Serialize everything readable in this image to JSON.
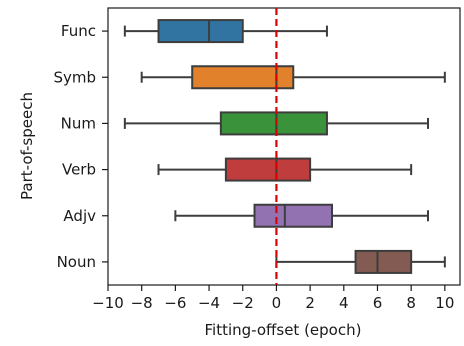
{
  "chart_data": {
    "type": "boxplot",
    "orientation": "horizontal",
    "xlabel": "Fitting-offset (epoch)",
    "ylabel": "Part-of-speech",
    "xlim": [
      -10,
      10.9
    ],
    "xticks": [
      -10,
      -8,
      -6,
      -4,
      -2,
      0,
      2,
      4,
      6,
      8,
      10
    ],
    "xtick_labels": [
      "−10",
      "−8",
      "−6",
      "−4",
      "−2",
      "0",
      "2",
      "4",
      "6",
      "8",
      "10"
    ],
    "grid": false,
    "reference_line": {
      "x": 0,
      "color": "#dd0000",
      "style": "dashed"
    },
    "categories": [
      "Func",
      "Symb",
      "Num",
      "Verb",
      "Adjv",
      "Noun"
    ],
    "boxes": [
      {
        "label": "Func",
        "whisker_low": -9,
        "q1": -7,
        "median": -4,
        "q3": -2,
        "whisker_high": 3,
        "color": "#3274a1"
      },
      {
        "label": "Symb",
        "whisker_low": -8,
        "q1": -5,
        "median": 0,
        "q3": 1,
        "whisker_high": 10,
        "color": "#e1812c"
      },
      {
        "label": "Num",
        "whisker_low": -9,
        "q1": -3.3,
        "median": 0,
        "q3": 3,
        "whisker_high": 9,
        "color": "#3a923a"
      },
      {
        "label": "Verb",
        "whisker_low": -7,
        "q1": -3,
        "median": 0,
        "q3": 2,
        "whisker_high": 8,
        "color": "#c03d3e"
      },
      {
        "label": "Adjv",
        "whisker_low": -6,
        "q1": -1.3,
        "median": 0.5,
        "q3": 3.3,
        "whisker_high": 9,
        "color": "#9372b2"
      },
      {
        "label": "Noun",
        "whisker_low": 0,
        "q1": 4.7,
        "median": 6,
        "q3": 8,
        "whisker_high": 10,
        "color": "#845b53"
      }
    ]
  }
}
